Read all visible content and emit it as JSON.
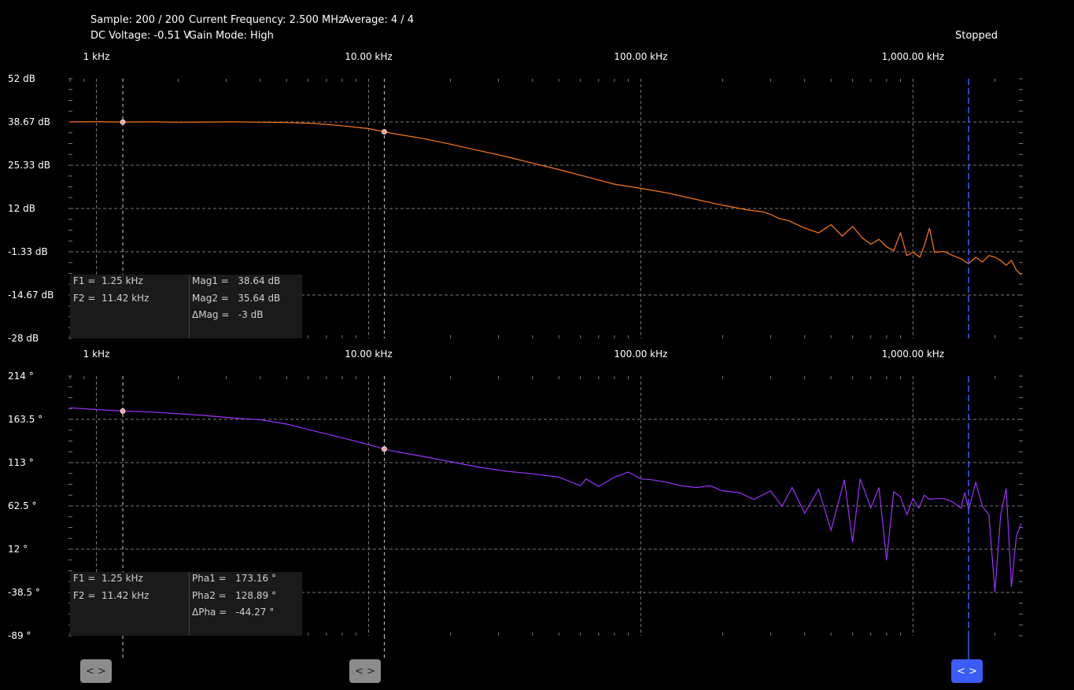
{
  "status": {
    "sample": "Sample: 200 / 200",
    "frequency": "Current Frequency: 2.500 MHz",
    "average": "Average: 4 / 4",
    "dc_voltage": "DC Voltage: -0.51 V",
    "gain_mode": "Gain Mode: High",
    "state": "Stopped"
  },
  "x_ticks": [
    {
      "f": 1,
      "label": "1 kHz"
    },
    {
      "f": 10,
      "label": "10.00 kHz"
    },
    {
      "f": 100,
      "label": "100.00 kHz"
    },
    {
      "f": 1000,
      "label": "1,000.00 kHz"
    }
  ],
  "colors": {
    "magnitude": "#ff7a1a",
    "phase": "#9b30ff",
    "marker": "#ff9a9a",
    "cursor3": "#3b5cf7",
    "grid": "#777777",
    "readout_bg": "#1a1a1a"
  },
  "magnitude_readout": {
    "f1": "F1 =  1.25 kHz",
    "f2": "F2 =  11.42 kHz",
    "v1": "Mag1 =   38.64 dB",
    "v2": "Mag2 =   35.64 dB",
    "dv": "ΔMag =   -3 dB"
  },
  "phase_readout": {
    "f1": "F1 =  1.25 kHz",
    "f2": "F2 =  11.42 kHz",
    "v1": "Pha1 =   173.16 °",
    "v2": "Pha2 =   128.89 °",
    "dv": "ΔPha =   -44.27 °"
  },
  "handles": {
    "cursor1": "< >",
    "cursor2": "< >",
    "cursor3": "< >"
  },
  "chart_data": [
    {
      "type": "line",
      "panel": "magnitude",
      "xscale": "log",
      "xunit": "kHz",
      "xlim": [
        0.8,
        2500
      ],
      "ylim": [
        -28,
        52
      ],
      "yticks": [
        {
          "v": 52,
          "label": "52 dB"
        },
        {
          "v": 38.67,
          "label": "38.67 dB"
        },
        {
          "v": 25.33,
          "label": "25.33 dB"
        },
        {
          "v": 12,
          "label": "12 dB"
        },
        {
          "v": -1.33,
          "label": "-1.33 dB"
        },
        {
          "v": -14.67,
          "label": "-14.67 dB"
        },
        {
          "v": -28,
          "label": "-28 dB"
        }
      ],
      "cursors": [
        1.25,
        11.42,
        1600
      ],
      "markers": [
        {
          "x": 1.25,
          "y": 38.64
        },
        {
          "x": 11.42,
          "y": 35.64
        }
      ],
      "x": [
        0.8,
        1,
        1.25,
        1.6,
        2,
        2.5,
        3.2,
        4,
        5,
        6.3,
        8,
        10,
        11.42,
        12.5,
        16,
        20,
        25,
        32,
        40,
        50,
        63,
        80,
        100,
        110,
        125,
        160,
        200,
        250,
        280,
        300,
        320,
        350,
        400,
        450,
        500,
        550,
        600,
        650,
        700,
        750,
        800,
        850,
        900,
        950,
        1000,
        1060,
        1100,
        1150,
        1200,
        1300,
        1400,
        1500,
        1600,
        1700,
        1800,
        1900,
        2000,
        2100,
        2200,
        2300,
        2400,
        2500
      ],
      "values": [
        38.7,
        38.75,
        38.64,
        38.7,
        38.6,
        38.65,
        38.7,
        38.6,
        38.5,
        38.2,
        37.5,
        36.6,
        35.64,
        35.0,
        33.5,
        31.8,
        30.0,
        28.0,
        26.0,
        24.0,
        21.8,
        19.5,
        18.2,
        17.6,
        16.8,
        14.8,
        13.0,
        11.5,
        11.0,
        10.2,
        9.0,
        8.2,
        6.0,
        4.5,
        7.0,
        3.5,
        6.5,
        3.0,
        1.0,
        2.5,
        0.2,
        -1.0,
        4.5,
        -2.5,
        -1.5,
        -3.0,
        0.5,
        6.0,
        -1.5,
        -1.2,
        -2.5,
        -3.5,
        -5.0,
        -3.0,
        -4.5,
        -2.5,
        -3.0,
        -4.0,
        -5.5,
        -4.0,
        -7.0,
        -8.5
      ]
    },
    {
      "type": "line",
      "panel": "phase",
      "xscale": "log",
      "xunit": "kHz",
      "xlim": [
        0.8,
        2500
      ],
      "ylim": [
        -89,
        214
      ],
      "yticks": [
        {
          "v": 214,
          "label": "214 °"
        },
        {
          "v": 163.5,
          "label": "163.5 °"
        },
        {
          "v": 113,
          "label": "113 °"
        },
        {
          "v": 62.5,
          "label": "62.5 °"
        },
        {
          "v": 12,
          "label": "12 °"
        },
        {
          "v": -38.5,
          "label": "-38.5 °"
        },
        {
          "v": -89,
          "label": "-89 °"
        }
      ],
      "cursors": [
        1.25,
        11.42,
        1600
      ],
      "markers": [
        {
          "x": 1.25,
          "y": 173.16
        },
        {
          "x": 11.42,
          "y": 128.89
        }
      ],
      "x": [
        0.8,
        1,
        1.25,
        1.6,
        2,
        2.5,
        3.2,
        4,
        5,
        6.3,
        8,
        10,
        11.42,
        12.5,
        16,
        20,
        25,
        32,
        40,
        50,
        60,
        63,
        70,
        80,
        90,
        100,
        110,
        125,
        140,
        160,
        180,
        200,
        230,
        260,
        300,
        330,
        360,
        400,
        450,
        500,
        560,
        600,
        640,
        700,
        750,
        800,
        850,
        900,
        950,
        1000,
        1050,
        1100,
        1150,
        1200,
        1300,
        1400,
        1500,
        1550,
        1600,
        1700,
        1800,
        1900,
        2000,
        2100,
        2200,
        2300,
        2400,
        2500
      ],
      "values": [
        177,
        175,
        173.16,
        172,
        170,
        168,
        165,
        163,
        158,
        150,
        142,
        134,
        128.89,
        126,
        120,
        114,
        108,
        103,
        100,
        96,
        86,
        94,
        85,
        96,
        102,
        94,
        93,
        90,
        86,
        84,
        86,
        80,
        78,
        70,
        80,
        62,
        84,
        54,
        82,
        34,
        93,
        20,
        94,
        60,
        84,
        -1,
        79,
        73,
        52,
        71,
        60,
        75,
        70,
        71,
        71,
        67,
        60,
        78,
        58,
        90,
        62,
        52,
        -38,
        52,
        83,
        -32,
        28,
        42
      ]
    }
  ]
}
